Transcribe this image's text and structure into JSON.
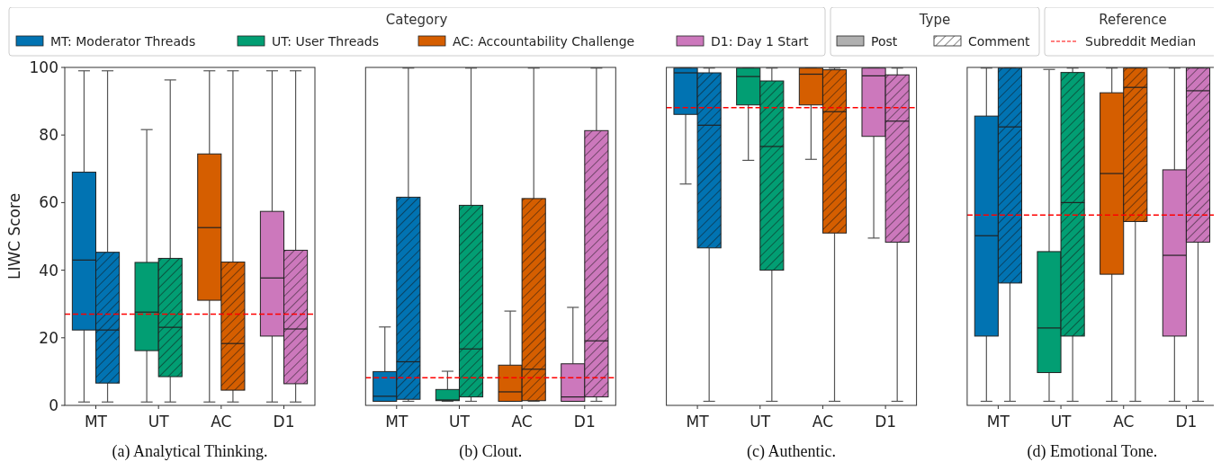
{
  "chart_data": [
    {
      "type": "other",
      "categories": [
        "MT: Moderator Threads",
        "UT: User Threads",
        "AC: Accountability Challenge",
        "D1: Day 1 Start"
      ],
      "colors": [
        "#0173b2",
        "#029e73",
        "#d55e00",
        "#cc78bc"
      ],
      "annotations": [
        "Category",
        "Type",
        "Post",
        "Comment",
        "Reference",
        "Subreddit Median"
      ]
    },
    {
      "type": "box",
      "title": "(a) Analytical Thinking.",
      "ylabel": "LIWC Score",
      "categories": [
        "MT",
        "UT",
        "AC",
        "D1"
      ],
      "ylim": [
        0,
        100
      ],
      "yticks": [
        0,
        20,
        40,
        60,
        80,
        100
      ],
      "series": [
        {
          "colors": [
            "#0173b2",
            "#029e73",
            "#d55e00",
            "#cc78bc"
          ],
          "boxes": [
            {
              "low": 1,
              "q1": 22.3,
              "median": 43,
              "q3": 69,
              "high": 99
            },
            {
              "low": 1,
              "q1": 16.2,
              "median": 27.6,
              "q3": 42.3,
              "high": 81.6
            },
            {
              "low": 1,
              "q1": 31.1,
              "median": 52.6,
              "q3": 74.4,
              "high": 99
            },
            {
              "low": 1,
              "q1": 20.5,
              "median": 37.7,
              "q3": 57.4,
              "high": 99
            }
          ]
        },
        {
          "colors": [
            "#0173b2",
            "#029e73",
            "#d55e00",
            "#cc78bc"
          ],
          "boxes": [
            {
              "low": 1,
              "q1": 6.6,
              "median": 22.3,
              "q3": 45.3,
              "high": 99
            },
            {
              "low": 1,
              "q1": 8.5,
              "median": 23.1,
              "q3": 43.5,
              "high": 96.3
            },
            {
              "low": 1,
              "q1": 4.5,
              "median": 18.3,
              "q3": 42.4,
              "high": 99
            },
            {
              "low": 1,
              "q1": 6.4,
              "median": 22.6,
              "q3": 45.9,
              "high": 99
            }
          ]
        }
      ],
      "ref_lines": [
        {
          "axis": "y",
          "value": 27,
          "color": "#ff0000",
          "line_style": "dashed"
        }
      ]
    },
    {
      "type": "box",
      "title": "(b) Clout.",
      "categories": [
        "MT",
        "UT",
        "AC",
        "D1"
      ],
      "ylim": [
        0,
        100
      ],
      "tick_labels": "x",
      "series": [
        {
          "colors": [
            "#0173b2",
            "#029e73",
            "#d55e00",
            "#cc78bc"
          ],
          "boxes": [
            {
              "low": 1.2,
              "q1": 1.2,
              "median": 2.7,
              "q3": 10,
              "high": 23.2
            },
            {
              "low": 1.2,
              "q1": 1.4,
              "median": 1.6,
              "q3": 4.7,
              "high": 10.1
            },
            {
              "low": 1.2,
              "q1": 1.2,
              "median": 4,
              "q3": 11.9,
              "high": 27.9
            },
            {
              "low": 1.2,
              "q1": 1.2,
              "median": 2.5,
              "q3": 12.3,
              "high": 29
            }
          ]
        },
        {
          "colors": [
            "#0173b2",
            "#029e73",
            "#d55e00",
            "#cc78bc"
          ],
          "boxes": [
            {
              "low": 1.2,
              "q1": 1.8,
              "median": 12.9,
              "q3": 61.6,
              "high": 99.8
            },
            {
              "low": 1.2,
              "q1": 2.5,
              "median": 16.7,
              "q3": 59.2,
              "high": 99.8
            },
            {
              "low": 1.2,
              "q1": 1.4,
              "median": 10.7,
              "q3": 61.2,
              "high": 99.8
            },
            {
              "low": 1.2,
              "q1": 2.5,
              "median": 19.1,
              "q3": 81.3,
              "high": 99.8
            }
          ]
        }
      ],
      "ref_lines": [
        {
          "axis": "y",
          "value": 8.2,
          "color": "#ff0000",
          "line_style": "dashed"
        }
      ]
    },
    {
      "type": "box",
      "title": "(c) Authentic.",
      "categories": [
        "MT",
        "UT",
        "AC",
        "D1"
      ],
      "ylim": [
        0,
        100
      ],
      "tick_labels": "x",
      "series": [
        {
          "colors": [
            "#0173b2",
            "#029e73",
            "#d55e00",
            "#cc78bc"
          ],
          "boxes": [
            {
              "low": 65.5,
              "q1": 86.1,
              "median": 98.4,
              "q3": 99.8,
              "high": 99.8
            },
            {
              "low": 72.5,
              "q1": 88.9,
              "median": 97.3,
              "q3": 99.8,
              "high": 99.8
            },
            {
              "low": 72.8,
              "q1": 88.9,
              "median": 98,
              "q3": 99.8,
              "high": 99.8
            },
            {
              "low": 49.5,
              "q1": 79.6,
              "median": 97.5,
              "q3": 99.8,
              "high": 99.8
            }
          ]
        },
        {
          "colors": [
            "#0173b2",
            "#029e73",
            "#d55e00",
            "#cc78bc"
          ],
          "boxes": [
            {
              "low": 1.2,
              "q1": 46.6,
              "median": 82.9,
              "q3": 98.4,
              "high": 99.8
            },
            {
              "low": 1.2,
              "q1": 40,
              "median": 76.6,
              "q3": 96,
              "high": 99.8
            },
            {
              "low": 1.2,
              "q1": 51,
              "median": 86.9,
              "q3": 99.3,
              "high": 99.8
            },
            {
              "low": 1.2,
              "q1": 48.3,
              "median": 84.1,
              "q3": 97.8,
              "high": 99.8
            }
          ]
        }
      ],
      "ref_lines": [
        {
          "axis": "y",
          "value": 88.1,
          "color": "#ff0000",
          "line_style": "dashed"
        }
      ]
    },
    {
      "type": "box",
      "title": "(d) Emotional Tone.",
      "categories": [
        "MT",
        "UT",
        "AC",
        "D1"
      ],
      "ylim": [
        0,
        100
      ],
      "tick_labels": "x",
      "series": [
        {
          "colors": [
            "#0173b2",
            "#029e73",
            "#d55e00",
            "#cc78bc"
          ],
          "boxes": [
            {
              "low": 1.2,
              "q1": 20.5,
              "median": 50.2,
              "q3": 85.6,
              "high": 99.8
            },
            {
              "low": 1.2,
              "q1": 9.7,
              "median": 22.9,
              "q3": 45.5,
              "high": 99.4
            },
            {
              "low": 1.2,
              "q1": 38.8,
              "median": 68.6,
              "q3": 92.5,
              "high": 99.8
            },
            {
              "low": 1.2,
              "q1": 20.5,
              "median": 44.4,
              "q3": 69.7,
              "high": 99.8
            }
          ]
        },
        {
          "colors": [
            "#0173b2",
            "#029e73",
            "#d55e00",
            "#cc78bc"
          ],
          "boxes": [
            {
              "low": 1.2,
              "q1": 36.2,
              "median": 82.4,
              "q3": 99.8,
              "high": 99.8
            },
            {
              "low": 1.2,
              "q1": 20.5,
              "median": 60,
              "q3": 98.5,
              "high": 99.8
            },
            {
              "low": 1.2,
              "q1": 54.4,
              "median": 94.1,
              "q3": 99.8,
              "high": 99.8
            },
            {
              "low": 1.2,
              "q1": 48.3,
              "median": 93.1,
              "q3": 99.8,
              "high": 99.8
            }
          ]
        }
      ],
      "ref_lines": [
        {
          "axis": "y",
          "value": 56.3,
          "color": "#ff0000",
          "line_style": "dashed"
        }
      ]
    }
  ]
}
